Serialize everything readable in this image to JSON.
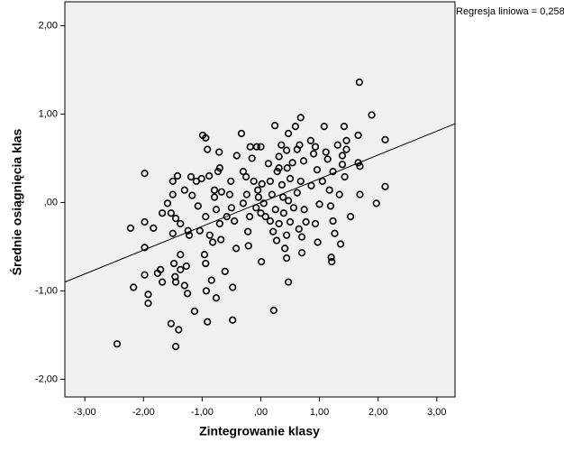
{
  "chart_data": {
    "type": "scatter",
    "x_label": "Zintegrowanie klasy",
    "y_label": "Średnie osiągnięcia klas",
    "annotation": "Regresja liniowa = 0,258",
    "xlim": [
      -3.34,
      3.31
    ],
    "ylim": [
      -2.2,
      2.27
    ],
    "xticks": [
      {
        "value": -3,
        "label": "-3,00"
      },
      {
        "value": -2,
        "label": "-2,00"
      },
      {
        "value": -1,
        "label": "-1,00"
      },
      {
        "value": 0,
        "label": ",00"
      },
      {
        "value": 1,
        "label": "1,00"
      },
      {
        "value": 2,
        "label": "2,00"
      },
      {
        "value": 3,
        "label": "3,00"
      }
    ],
    "yticks": [
      {
        "value": -2,
        "label": "-2,00"
      },
      {
        "value": -1,
        "label": "-1,00"
      },
      {
        "value": 0,
        "label": ",00"
      },
      {
        "value": 1,
        "label": "1,00"
      },
      {
        "value": 2,
        "label": "2,00"
      }
    ],
    "color": "#000000",
    "background": "#f0f0f0",
    "fit_line": {
      "x": [
        -3.34,
        3.31
      ],
      "y": [
        -0.9,
        0.89
      ],
      "color": "#000000"
    },
    "x": [
      -2.45,
      -2.22,
      -2.17,
      -1.98,
      -1.98,
      -1.98,
      -1.98,
      -1.92,
      -1.92,
      -1.83,
      -1.76,
      -1.71,
      -1.68,
      -1.68,
      -1.59,
      -1.53,
      -1.53,
      -1.5,
      -1.5,
      -1.5,
      -1.48,
      -1.46,
      -1.45,
      -1.45,
      -1.42,
      -1.4,
      -1.45,
      -1.37,
      -1.37,
      -1.37,
      -1.3,
      -1.3,
      -1.27,
      -1.25,
      -1.24,
      -1.22,
      -1.19,
      -1.17,
      -1.13,
      -1.1,
      -1.07,
      -1.04,
      -1.01,
      -0.99,
      -0.94,
      -0.96,
      -0.94,
      -0.94,
      -0.93,
      -0.91,
      -0.91,
      -0.88,
      -0.87,
      -0.84,
      -0.82,
      -0.79,
      -0.79,
      -0.76,
      -0.76,
      -0.73,
      -0.71,
      -0.7,
      -0.68,
      -0.7,
      -0.67,
      -0.61,
      -0.58,
      -0.53,
      -0.51,
      -0.5,
      -0.48,
      -0.48,
      -0.45,
      -0.42,
      -0.41,
      -0.33,
      -0.3,
      -0.3,
      -0.25,
      -0.24,
      -0.22,
      -0.21,
      -0.19,
      -0.18,
      -0.15,
      -0.12,
      -0.08,
      -0.07,
      -0.05,
      -0.04,
      0.0,
      0.0,
      0.01,
      0.02,
      0.05,
      0.08,
      0.13,
      0.16,
      0.16,
      0.19,
      0.21,
      0.22,
      0.24,
      0.25,
      0.27,
      0.28,
      0.31,
      0.31,
      0.35,
      0.36,
      0.38,
      0.39,
      0.41,
      0.44,
      0.44,
      0.45,
      0.47,
      0.47,
      0.47,
      0.5,
      0.5,
      0.54,
      0.56,
      0.59,
      0.62,
      0.62,
      0.65,
      0.68,
      0.68,
      0.7,
      0.7,
      0.73,
      0.74,
      0.77,
      0.85,
      0.86,
      0.9,
      0.93,
      0.93,
      0.96,
      0.97,
      1.0,
      1.05,
      1.08,
      1.11,
      1.14,
      1.17,
      1.19,
      1.2,
      1.21,
      1.23,
      1.23,
      1.26,
      1.31,
      1.34,
      1.36,
      1.39,
      1.39,
      1.42,
      1.43,
      1.46,
      1.46,
      1.53,
      1.66,
      1.66,
      1.68,
      1.69,
      1.69,
      1.89,
      1.97,
      2.12,
      2.12,
      0.66,
      0.44,
      0.31
    ],
    "values": [
      -1.6,
      -0.29,
      -0.96,
      0.33,
      -0.22,
      -0.51,
      -0.82,
      -1.04,
      -1.14,
      -0.29,
      -0.8,
      -0.76,
      -0.12,
      -0.9,
      -0.01,
      -1.37,
      -0.12,
      0.24,
      0.09,
      -0.35,
      -0.69,
      -0.84,
      -0.9,
      -1.63,
      0.3,
      -1.44,
      -0.18,
      -0.24,
      -0.59,
      -0.76,
      0.14,
      -0.94,
      -0.72,
      -1.03,
      -0.32,
      -0.37,
      0.29,
      0.08,
      -1.23,
      0.24,
      -0.04,
      -0.32,
      0.27,
      0.76,
      0.73,
      -0.59,
      -0.69,
      -0.16,
      -1.0,
      -1.35,
      0.6,
      0.3,
      -0.37,
      -0.88,
      -0.45,
      0.06,
      0.14,
      -0.08,
      -1.08,
      0.35,
      0.57,
      -0.24,
      -0.42,
      0.39,
      0.12,
      -0.78,
      -0.16,
      0.09,
      0.24,
      -0.06,
      -1.33,
      -0.96,
      -0.21,
      -0.52,
      0.53,
      0.78,
      0.35,
      -0.01,
      0.29,
      0.09,
      -0.33,
      -0.49,
      -0.16,
      0.63,
      0.5,
      0.24,
      -0.06,
      0.63,
      0.14,
      0.06,
      0.63,
      -0.12,
      -0.67,
      0.21,
      -0.01,
      -0.16,
      0.44,
      0.24,
      -0.21,
      0.09,
      -0.33,
      -1.22,
      0.87,
      -0.08,
      -0.43,
      0.35,
      0.39,
      -0.24,
      0.65,
      0.2,
      0.06,
      -0.12,
      -0.52,
      -0.37,
      -0.63,
      0.39,
      0.78,
      -0.9,
      0.02,
      0.27,
      -0.22,
      0.45,
      -0.06,
      0.86,
      0.6,
      0.11,
      -0.3,
      0.96,
      0.24,
      -0.39,
      -0.57,
      0.47,
      -0.08,
      -0.22,
      0.7,
      0.19,
      0.55,
      -0.24,
      0.63,
      0.37,
      -0.45,
      -0.02,
      0.24,
      0.86,
      0.57,
      0.49,
      0.14,
      -0.04,
      -0.62,
      -0.67,
      -0.21,
      0.35,
      -0.35,
      0.65,
      0.09,
      -0.47,
      0.53,
      0.43,
      0.86,
      0.29,
      0.7,
      0.6,
      -0.16,
      0.76,
      0.45,
      1.36,
      0.09,
      0.41,
      0.99,
      -0.01,
      0.71,
      0.18,
      0.65,
      0.59,
      0.52
    ]
  }
}
